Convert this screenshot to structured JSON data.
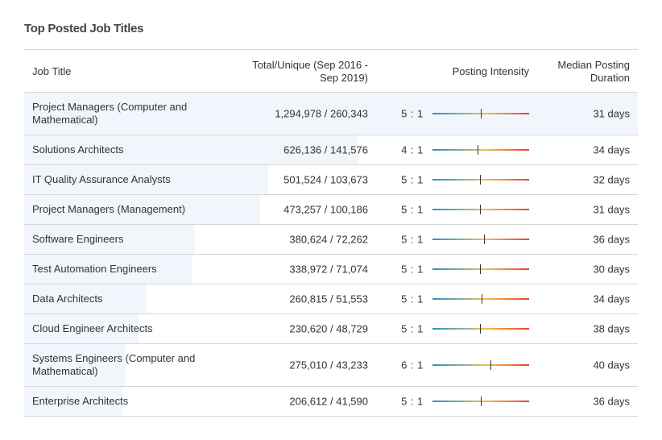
{
  "title": "Top Posted Job Titles",
  "columns": {
    "job_title": "Job Title",
    "total_unique": "Total/Unique (Sep 2016 - Sep 2019)",
    "posting_intensity": "Posting Intensity",
    "median_duration": "Median Posting Duration"
  },
  "colors": {
    "scale_low": "#2f8fc6",
    "scale_mid": "#f2c04a",
    "scale_high": "#e5413c",
    "bar_fill": "#f1f6fc"
  },
  "rows": [
    {
      "job_title": "Project Managers (Computer and Mathematical)",
      "total_unique": "1,294,978 / 260,343",
      "intensity": "5 : 1",
      "intensity_level": 0.5,
      "duration": "31 days",
      "share": 1.0,
      "highlighted": true
    },
    {
      "job_title": "Solutions Architects",
      "total_unique": "626,136 / 141,576",
      "intensity": "4 : 1",
      "intensity_level": 0.47,
      "duration": "34 days",
      "share": 0.544
    },
    {
      "job_title": "IT Quality Assurance Analysts",
      "total_unique": "501,524 / 103,673",
      "intensity": "5 : 1",
      "intensity_level": 0.49,
      "duration": "32 days",
      "share": 0.398
    },
    {
      "job_title": "Project Managers (Management)",
      "total_unique": "473,257 / 100,186",
      "intensity": "5 : 1",
      "intensity_level": 0.49,
      "duration": "31 days",
      "share": 0.385
    },
    {
      "job_title": "Software Engineers",
      "total_unique": "380,624 / 72,262",
      "intensity": "5 : 1",
      "intensity_level": 0.53,
      "duration": "36 days",
      "share": 0.278
    },
    {
      "job_title": "Test Automation Engineers",
      "total_unique": "338,972 / 71,074",
      "intensity": "5 : 1",
      "intensity_level": 0.49,
      "duration": "30 days",
      "share": 0.273
    },
    {
      "job_title": "Data Architects",
      "total_unique": "260,815 / 51,553",
      "intensity": "5 : 1",
      "intensity_level": 0.51,
      "duration": "34 days",
      "share": 0.198
    },
    {
      "job_title": "Cloud Engineer Architects",
      "total_unique": "230,620 / 48,729",
      "intensity": "5 : 1",
      "intensity_level": 0.49,
      "duration": "38 days",
      "share": 0.187
    },
    {
      "job_title": "Systems Engineers (Computer and Mathematical)",
      "total_unique": "275,010 / 43,233",
      "intensity": "6 : 1",
      "intensity_level": 0.6,
      "duration": "40 days",
      "share": 0.166
    },
    {
      "job_title": "Enterprise Architects",
      "total_unique": "206,612 / 41,590",
      "intensity": "5 : 1",
      "intensity_level": 0.5,
      "duration": "36 days",
      "share": 0.16
    }
  ]
}
